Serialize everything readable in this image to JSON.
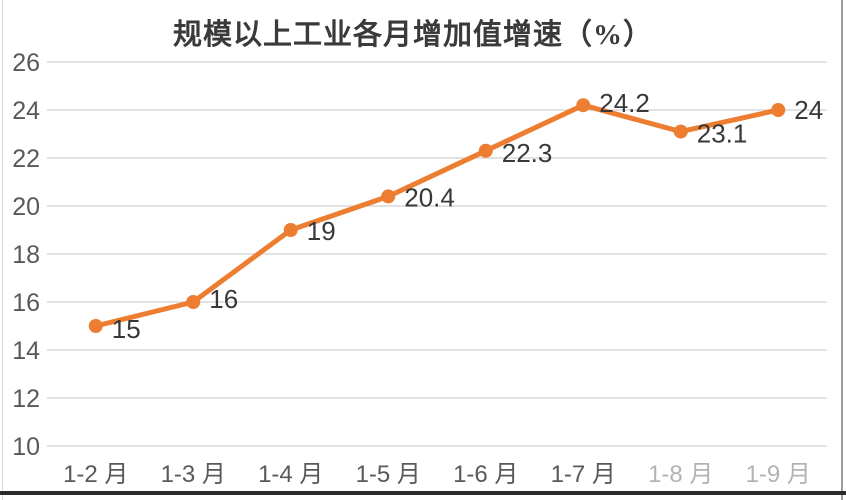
{
  "chart_data": {
    "type": "line",
    "title": "规模以上工业各月增加值增速（%）",
    "categories": [
      "1-2 月",
      "1-3 月",
      "1-4 月",
      "1-5 月",
      "1-6 月",
      "1-7 月",
      "1-8 月",
      "1-9 月"
    ],
    "series": [
      {
        "name": "规模以上工业各月增加值增速",
        "values": [
          15,
          16,
          19,
          20.4,
          22.3,
          24.2,
          23.1,
          24
        ]
      }
    ],
    "data_labels": [
      "15",
      "16",
      "19",
      "20.4",
      "22.3",
      "24.2",
      "23.1",
      "24"
    ],
    "xlabel": "",
    "ylabel": "",
    "ylim": [
      10,
      26
    ],
    "yticks": [
      10,
      12,
      14,
      16,
      18,
      20,
      22,
      24,
      26
    ],
    "grid": true,
    "legend_position": "none",
    "muted_category_start_index": 6,
    "colors": {
      "line": "#ED7D31",
      "marker": "#ED7D31",
      "gridline": "#D9D9D9",
      "axis_labels": "#595959",
      "data_labels": "#383838",
      "title": "#3a3a3a"
    }
  }
}
